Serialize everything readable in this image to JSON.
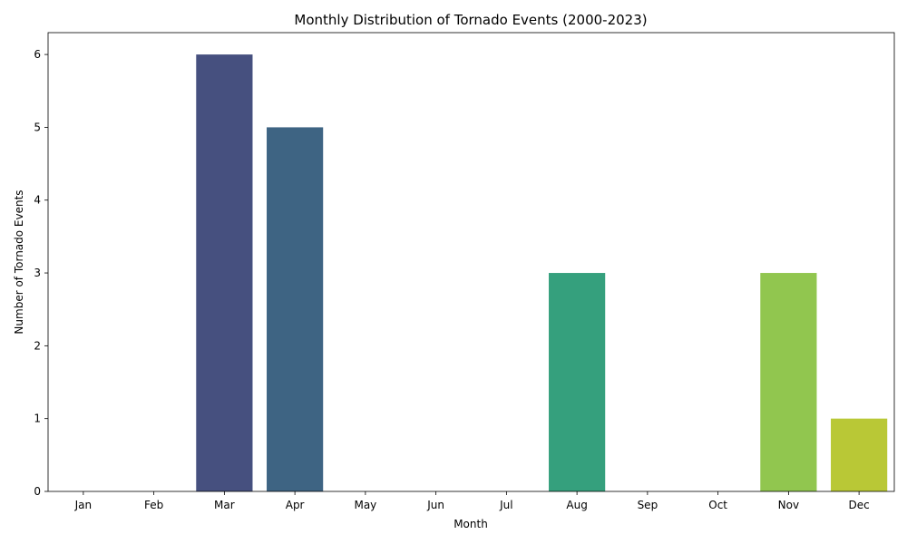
{
  "chart_data": {
    "type": "bar",
    "title": "Monthly Distribution of Tornado Events (2000-2023)",
    "xlabel": "Month",
    "ylabel": "Number of Tornado Events",
    "categories": [
      "Jan",
      "Feb",
      "Mar",
      "Apr",
      "May",
      "Jun",
      "Jul",
      "Aug",
      "Sep",
      "Oct",
      "Nov",
      "Dec"
    ],
    "values": [
      0,
      0,
      6,
      5,
      0,
      0,
      0,
      3,
      0,
      0,
      3,
      1
    ],
    "colors": [
      "#471365",
      "#482878",
      "#46507f",
      "#3e6483",
      "#31688e",
      "#26828e",
      "#1f9e89",
      "#35a07d",
      "#6ece58",
      "#b5de2b",
      "#91c64f",
      "#b9c836"
    ],
    "ylim": [
      0,
      6.3
    ],
    "yticks": [
      0,
      1,
      2,
      3,
      4,
      5,
      6
    ],
    "grid": false,
    "legend": "none"
  }
}
